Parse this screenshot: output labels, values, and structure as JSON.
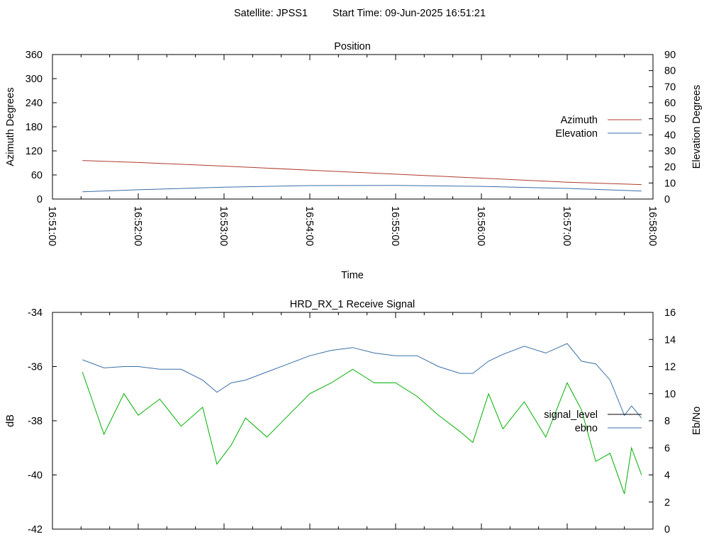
{
  "header": {
    "satellite_label": "Satellite: JPSS1",
    "start_time_label": "Start Time: 09-Jun-2025 16:51:21"
  },
  "colors": {
    "azimuth": "#b03a2e",
    "elevation": "#3a6ea5",
    "signal_level": "#000000",
    "ebno_line": "#3a6ea5",
    "signal_trace": "#00b000",
    "ebno_trace": "#3a6ea5"
  },
  "chart_data": [
    {
      "type": "line",
      "title": "Position",
      "xlabel": "Time",
      "ylabel": "Azimuth Degrees",
      "y2label": "Elevation Degrees",
      "x_tick_labels": [
        "16:51:00",
        "16:52:00",
        "16:53:00",
        "16:54:00",
        "16:55:00",
        "16:56:00",
        "16:57:00",
        "16:58:00"
      ],
      "xlim": [
        "16:51:00",
        "16:58:00"
      ],
      "ylim": [
        0,
        360
      ],
      "y_ticks": [
        0,
        60,
        120,
        180,
        240,
        300,
        360
      ],
      "y2lim": [
        0,
        90
      ],
      "y2_ticks": [
        0,
        10,
        20,
        30,
        40,
        50,
        60,
        70,
        80,
        90
      ],
      "grid": false,
      "legend_position": "right",
      "series": [
        {
          "name": "Azimuth",
          "axis": "left",
          "x": [
            "16:51:21",
            "16:52:00",
            "16:53:00",
            "16:54:00",
            "16:55:00",
            "16:56:00",
            "16:57:00",
            "16:57:52"
          ],
          "values": [
            96,
            91,
            82,
            72,
            62,
            52,
            42,
            36
          ]
        },
        {
          "name": "Elevation",
          "axis": "right",
          "x": [
            "16:51:21",
            "16:52:00",
            "16:53:00",
            "16:54:00",
            "16:55:00",
            "16:56:00",
            "16:57:00",
            "16:57:52"
          ],
          "values": [
            4.5,
            5.8,
            7.4,
            8.4,
            8.5,
            7.9,
            6.6,
            5.0
          ]
        }
      ]
    },
    {
      "type": "line",
      "title": "HRD_RX_1 Receive Signal",
      "ylabel": "dB",
      "y2label": "Eb/No",
      "ylim": [
        -42,
        -34
      ],
      "y_ticks": [
        -42,
        -40,
        -38,
        -36,
        -34
      ],
      "y2lim": [
        0,
        16
      ],
      "y2_ticks": [
        0,
        2,
        4,
        6,
        8,
        10,
        12,
        14,
        16
      ],
      "xlim": [
        "16:51:00",
        "16:58:00"
      ],
      "grid": false,
      "legend_position": "right",
      "legend": [
        "signal_level",
        "ebno"
      ],
      "series": [
        {
          "role": "signal_trace",
          "axis": "left",
          "x": [
            "16:51:21",
            "16:51:36",
            "16:51:50",
            "16:52:00",
            "16:52:15",
            "16:52:30",
            "16:52:45",
            "16:52:55",
            "16:53:05",
            "16:53:15",
            "16:53:30",
            "16:53:45",
            "16:54:00",
            "16:54:15",
            "16:54:30",
            "16:54:45",
            "16:55:00",
            "16:55:15",
            "16:55:30",
            "16:55:45",
            "16:55:54",
            "16:56:05",
            "16:56:15",
            "16:56:30",
            "16:56:45",
            "16:57:00",
            "16:57:10",
            "16:57:20",
            "16:57:30",
            "16:57:40",
            "16:57:45",
            "16:57:52"
          ],
          "values": [
            -36.2,
            -38.5,
            -37.0,
            -37.8,
            -37.2,
            -38.2,
            -37.5,
            -39.6,
            -38.9,
            -37.9,
            -38.6,
            -37.8,
            -37.0,
            -36.6,
            -36.1,
            -36.6,
            -36.6,
            -37.1,
            -37.8,
            -38.4,
            -38.8,
            -37.0,
            -38.3,
            -37.3,
            -38.6,
            -36.6,
            -37.6,
            -39.5,
            -39.2,
            -40.7,
            -39.0,
            -40.0
          ]
        },
        {
          "role": "ebno_trace",
          "axis": "right",
          "x": [
            "16:51:21",
            "16:51:36",
            "16:51:50",
            "16:52:00",
            "16:52:15",
            "16:52:30",
            "16:52:45",
            "16:52:55",
            "16:53:05",
            "16:53:15",
            "16:53:30",
            "16:53:45",
            "16:54:00",
            "16:54:15",
            "16:54:30",
            "16:54:45",
            "16:55:00",
            "16:55:15",
            "16:55:30",
            "16:55:45",
            "16:55:54",
            "16:56:05",
            "16:56:15",
            "16:56:30",
            "16:56:45",
            "16:57:00",
            "16:57:10",
            "16:57:20",
            "16:57:30",
            "16:57:40",
            "16:57:45",
            "16:57:52"
          ],
          "values": [
            12.5,
            11.9,
            12.0,
            12.0,
            11.8,
            11.8,
            11.0,
            10.1,
            10.8,
            11.0,
            11.6,
            12.2,
            12.8,
            13.2,
            13.4,
            13.0,
            12.8,
            12.8,
            12.0,
            11.5,
            11.5,
            12.4,
            12.9,
            13.5,
            13.0,
            13.7,
            12.4,
            12.2,
            11.0,
            8.4,
            9.1,
            8.2
          ]
        }
      ]
    }
  ]
}
